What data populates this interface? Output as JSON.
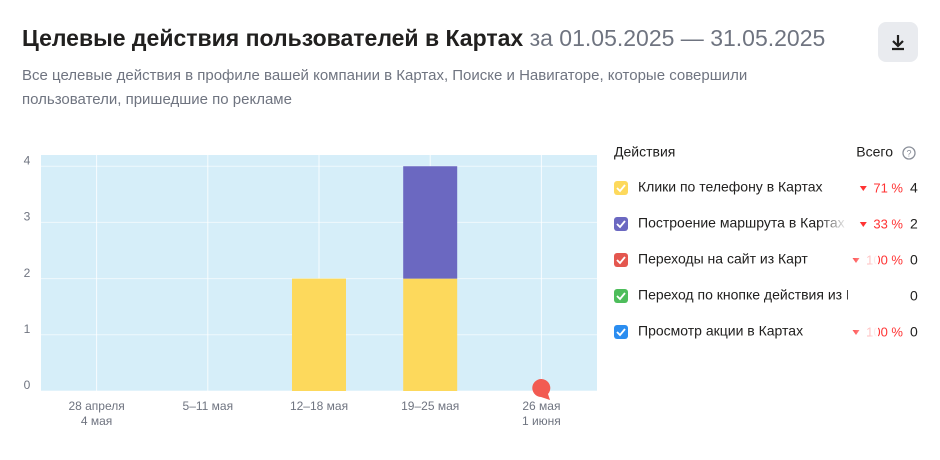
{
  "header": {
    "title": "Целевые действия пользователей в Картах",
    "period": "за 01.05.2025 — 31.05.2025",
    "subtitle": [
      "Все целевые действия в профиле вашей компании в Картах, Поиске и Навигаторе, которые совершили",
      "пользователи, пришедшие по рекламе"
    ]
  },
  "chart_data": {
    "type": "stacked_bar",
    "categories": [
      [
        "28 апреля",
        "4 мая"
      ],
      [
        "5–11 мая"
      ],
      [
        "12–18 мая"
      ],
      [
        "19–25 мая"
      ],
      [
        "26 мая",
        "1 июня"
      ]
    ],
    "series": [
      {
        "name": "Клики по телефону в Картах",
        "color": "#fdd95c",
        "values": [
          0,
          0,
          2,
          2,
          0
        ],
        "change": "71 %",
        "total": 4
      },
      {
        "name": "Построение маршрута в Картах",
        "color": "#6b68c1",
        "values": [
          0,
          0,
          0,
          2,
          0
        ],
        "change": "33 %",
        "total": 2
      },
      {
        "name": "Переходы на сайт из Карт",
        "color": "#e4574f",
        "values": [
          0,
          0,
          0,
          0,
          0
        ],
        "change": "100 %",
        "total": 0
      },
      {
        "name": "Переход по кнопке действия из Карт",
        "color": "#4dbd5b",
        "values": [
          0,
          0,
          0,
          0,
          0
        ],
        "total": 0
      },
      {
        "name": "Просмотр акции в Картах",
        "color": "#2b8df0",
        "values": [
          0,
          0,
          0,
          0,
          0
        ],
        "change": "100 %",
        "total": 0
      }
    ],
    "ylim": [
      0,
      4.2
    ],
    "yticks": [
      0,
      1,
      2,
      3,
      4
    ],
    "grid": true,
    "legend_header": "Действия",
    "total_header": "Всего"
  }
}
